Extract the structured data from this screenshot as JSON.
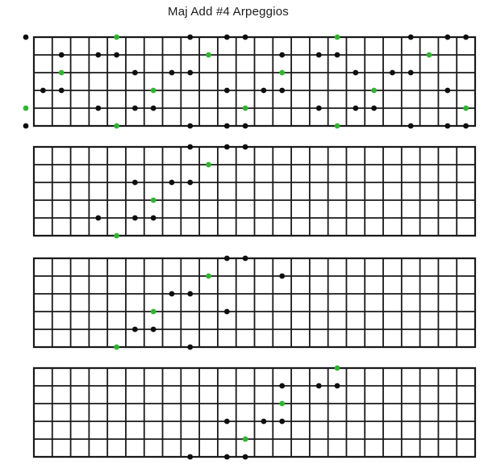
{
  "title": "Maj Add #4 Arpeggios",
  "colors": {
    "root_dot": "#33B433",
    "note_dot": "#0e0e0e",
    "line": "#1a1a1a",
    "background": "#ffffff"
  },
  "fretboard": {
    "string_count": 6,
    "fret_count": 24
  },
  "diagrams": [
    {
      "id": "full-neck-pattern",
      "dots": [
        {
          "s": 1,
          "f": 0,
          "root": false
        },
        {
          "s": 1,
          "f": 5,
          "root": true
        },
        {
          "s": 1,
          "f": 9,
          "root": false
        },
        {
          "s": 1,
          "f": 11,
          "root": false
        },
        {
          "s": 1,
          "f": 12,
          "root": false
        },
        {
          "s": 1,
          "f": 17,
          "root": true
        },
        {
          "s": 1,
          "f": 21,
          "root": false
        },
        {
          "s": 1,
          "f": 23,
          "root": false
        },
        {
          "s": 1,
          "f": 24,
          "root": false
        },
        {
          "s": 2,
          "f": 2,
          "root": false
        },
        {
          "s": 2,
          "f": 4,
          "root": false
        },
        {
          "s": 2,
          "f": 5,
          "root": false
        },
        {
          "s": 2,
          "f": 10,
          "root": true
        },
        {
          "s": 2,
          "f": 14,
          "root": false
        },
        {
          "s": 2,
          "f": 16,
          "root": false
        },
        {
          "s": 2,
          "f": 17,
          "root": false
        },
        {
          "s": 2,
          "f": 22,
          "root": true
        },
        {
          "s": 3,
          "f": 2,
          "root": true
        },
        {
          "s": 3,
          "f": 6,
          "root": false
        },
        {
          "s": 3,
          "f": 8,
          "root": false
        },
        {
          "s": 3,
          "f": 9,
          "root": false
        },
        {
          "s": 3,
          "f": 14,
          "root": true
        },
        {
          "s": 3,
          "f": 18,
          "root": false
        },
        {
          "s": 3,
          "f": 20,
          "root": false
        },
        {
          "s": 3,
          "f": 21,
          "root": false
        },
        {
          "s": 4,
          "f": 1,
          "root": false
        },
        {
          "s": 4,
          "f": 2,
          "root": false
        },
        {
          "s": 4,
          "f": 7,
          "root": true
        },
        {
          "s": 4,
          "f": 11,
          "root": false
        },
        {
          "s": 4,
          "f": 13,
          "root": false
        },
        {
          "s": 4,
          "f": 14,
          "root": false
        },
        {
          "s": 4,
          "f": 19,
          "root": true
        },
        {
          "s": 4,
          "f": 23,
          "root": false
        },
        {
          "s": 5,
          "f": 0,
          "root": true
        },
        {
          "s": 5,
          "f": 4,
          "root": false
        },
        {
          "s": 5,
          "f": 6,
          "root": false
        },
        {
          "s": 5,
          "f": 7,
          "root": false
        },
        {
          "s": 5,
          "f": 12,
          "root": true
        },
        {
          "s": 5,
          "f": 16,
          "root": false
        },
        {
          "s": 5,
          "f": 18,
          "root": false
        },
        {
          "s": 5,
          "f": 19,
          "root": false
        },
        {
          "s": 5,
          "f": 24,
          "root": true
        },
        {
          "s": 6,
          "f": 0,
          "root": false
        },
        {
          "s": 6,
          "f": 5,
          "root": true
        },
        {
          "s": 6,
          "f": 9,
          "root": false
        },
        {
          "s": 6,
          "f": 11,
          "root": false
        },
        {
          "s": 6,
          "f": 12,
          "root": false
        },
        {
          "s": 6,
          "f": 17,
          "root": true
        },
        {
          "s": 6,
          "f": 21,
          "root": false
        },
        {
          "s": 6,
          "f": 23,
          "root": false
        },
        {
          "s": 6,
          "f": 24,
          "root": false
        }
      ]
    },
    {
      "id": "position-box-1",
      "dots": [
        {
          "s": 1,
          "f": 9,
          "root": false
        },
        {
          "s": 1,
          "f": 11,
          "root": false
        },
        {
          "s": 1,
          "f": 12,
          "root": false
        },
        {
          "s": 2,
          "f": 10,
          "root": true
        },
        {
          "s": 3,
          "f": 6,
          "root": false
        },
        {
          "s": 3,
          "f": 8,
          "root": false
        },
        {
          "s": 3,
          "f": 9,
          "root": false
        },
        {
          "s": 4,
          "f": 7,
          "root": true
        },
        {
          "s": 5,
          "f": 4,
          "root": false
        },
        {
          "s": 5,
          "f": 6,
          "root": false
        },
        {
          "s": 5,
          "f": 7,
          "root": false
        },
        {
          "s": 6,
          "f": 5,
          "root": true
        }
      ]
    },
    {
      "id": "position-box-2",
      "dots": [
        {
          "s": 1,
          "f": 11,
          "root": false
        },
        {
          "s": 1,
          "f": 12,
          "root": false
        },
        {
          "s": 2,
          "f": 10,
          "root": true
        },
        {
          "s": 2,
          "f": 14,
          "root": false
        },
        {
          "s": 3,
          "f": 8,
          "root": false
        },
        {
          "s": 3,
          "f": 9,
          "root": false
        },
        {
          "s": 4,
          "f": 7,
          "root": true
        },
        {
          "s": 4,
          "f": 11,
          "root": false
        },
        {
          "s": 5,
          "f": 6,
          "root": false
        },
        {
          "s": 5,
          "f": 7,
          "root": false
        },
        {
          "s": 6,
          "f": 5,
          "root": true
        },
        {
          "s": 6,
          "f": 9,
          "root": false
        }
      ]
    },
    {
      "id": "position-box-3",
      "dots": [
        {
          "s": 1,
          "f": 17,
          "root": true
        },
        {
          "s": 2,
          "f": 14,
          "root": false
        },
        {
          "s": 2,
          "f": 16,
          "root": false
        },
        {
          "s": 2,
          "f": 17,
          "root": false
        },
        {
          "s": 3,
          "f": 14,
          "root": true
        },
        {
          "s": 4,
          "f": 11,
          "root": false
        },
        {
          "s": 4,
          "f": 13,
          "root": false
        },
        {
          "s": 4,
          "f": 14,
          "root": false
        },
        {
          "s": 5,
          "f": 12,
          "root": true
        },
        {
          "s": 6,
          "f": 9,
          "root": false
        },
        {
          "s": 6,
          "f": 11,
          "root": false
        },
        {
          "s": 6,
          "f": 12,
          "root": false
        }
      ]
    }
  ]
}
